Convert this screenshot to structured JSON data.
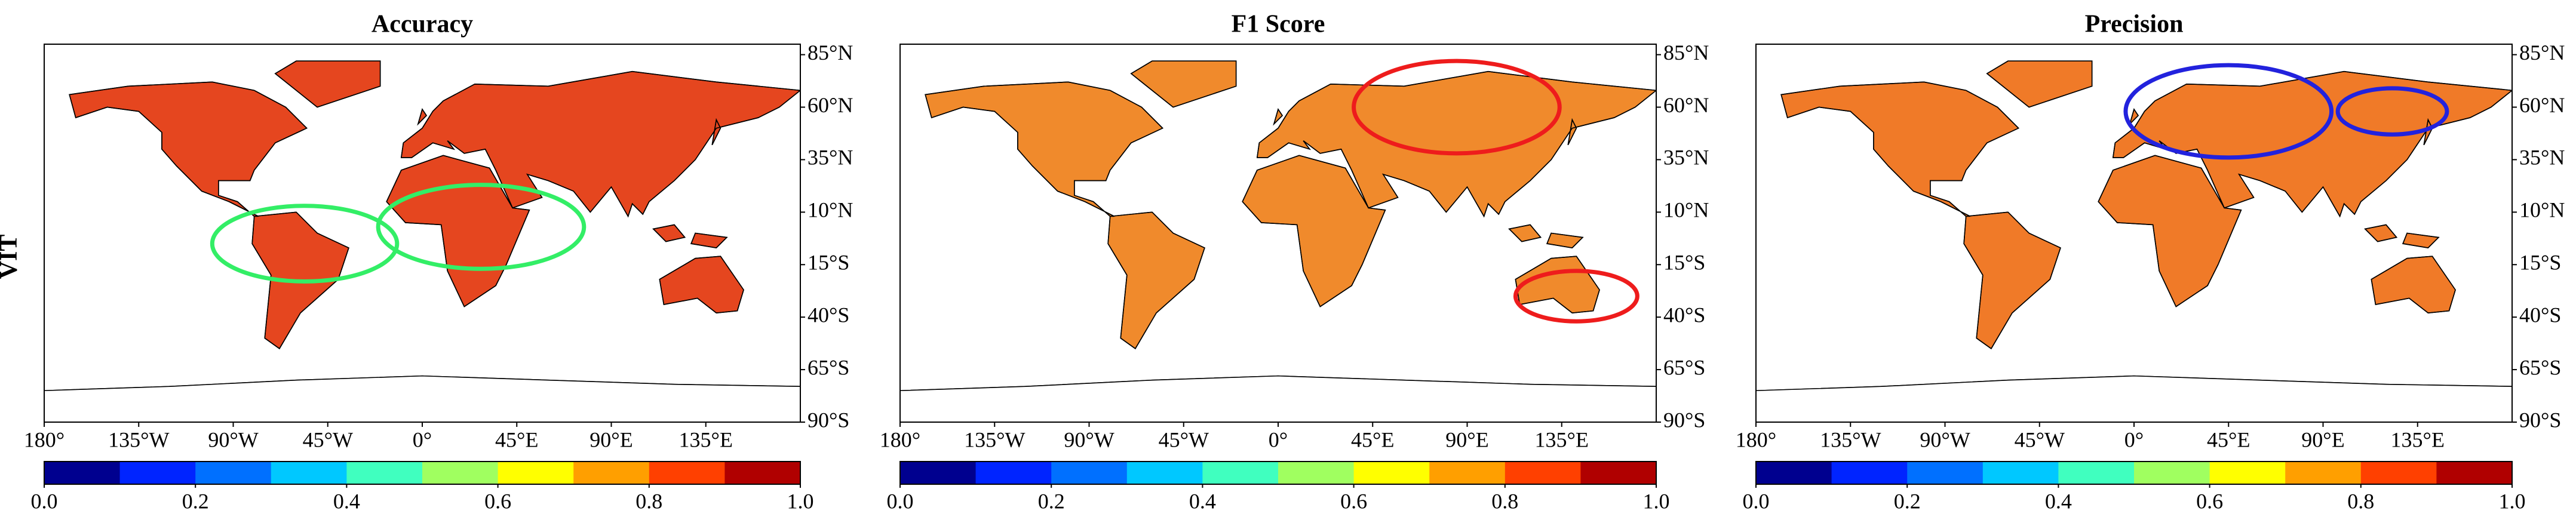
{
  "row_label": "VIT",
  "panels": [
    {
      "title": "Accuracy"
    },
    {
      "title": "F1 Score"
    },
    {
      "title": "Precision"
    }
  ],
  "lon_ticks": [
    {
      "value": -180,
      "label": "180°"
    },
    {
      "value": -135,
      "label": "135°W"
    },
    {
      "value": -90,
      "label": "90°W"
    },
    {
      "value": -45,
      "label": "45°W"
    },
    {
      "value": 0,
      "label": "0°"
    },
    {
      "value": 45,
      "label": "45°E"
    },
    {
      "value": 90,
      "label": "90°E"
    },
    {
      "value": 135,
      "label": "135°E"
    }
  ],
  "lat_ticks": [
    {
      "value": 85,
      "label": "85°N"
    },
    {
      "value": 60,
      "label": "60°N"
    },
    {
      "value": 35,
      "label": "35°N"
    },
    {
      "value": 10,
      "label": "10°N"
    },
    {
      "value": -15,
      "label": "15°S"
    },
    {
      "value": -40,
      "label": "40°S"
    },
    {
      "value": -65,
      "label": "65°S"
    },
    {
      "value": -90,
      "label": "90°S"
    }
  ],
  "colorbar": {
    "colors": [
      "#00008f",
      "#0024ff",
      "#0070ff",
      "#00c8ff",
      "#40ffbf",
      "#a0ff60",
      "#ffff00",
      "#ff9f00",
      "#ff4000",
      "#b00000"
    ],
    "lim": [
      0,
      1
    ],
    "ticks": [
      {
        "value": 0,
        "label": "0.0"
      },
      {
        "value": 0.2,
        "label": "0.2"
      },
      {
        "value": 0.4,
        "label": "0.4"
      },
      {
        "value": 0.6,
        "label": "0.6"
      },
      {
        "value": 0.8,
        "label": "0.8"
      },
      {
        "value": 1,
        "label": "1.0"
      }
    ]
  }
}
